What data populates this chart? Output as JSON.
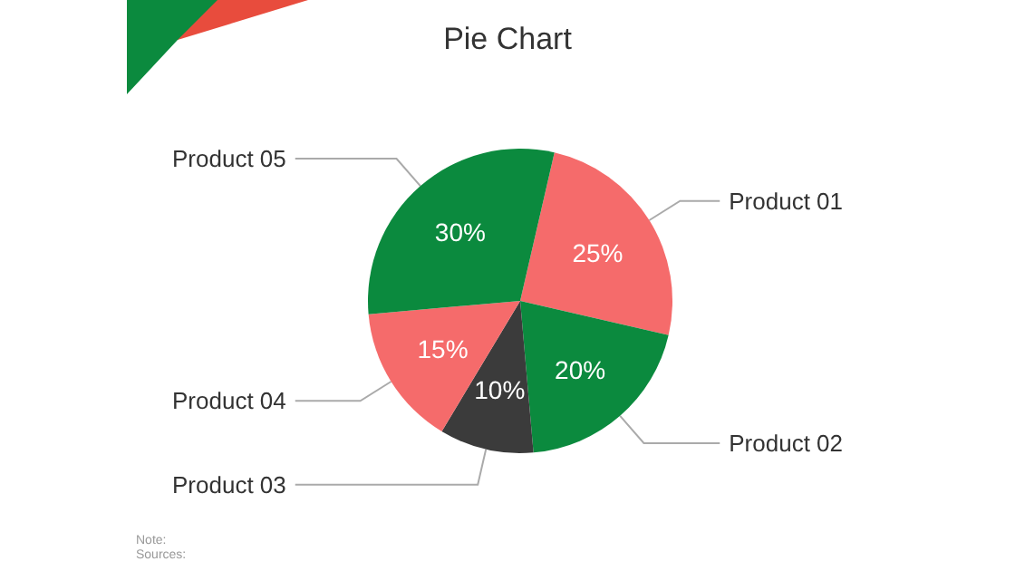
{
  "chart_data": {
    "type": "pie",
    "title": "Pie Chart",
    "categories": [
      "Product 01",
      "Product 02",
      "Product 03",
      "Product 04",
      "Product 05"
    ],
    "values": [
      25,
      20,
      10,
      15,
      30
    ],
    "value_labels": [
      "25%",
      "20%",
      "10%",
      "15%",
      "30%"
    ],
    "colors": [
      "#f56b6b",
      "#0b8a3e",
      "#3b3b3b",
      "#f56b6b",
      "#0b8a3e"
    ],
    "annotations": [
      "Note:",
      "Sources:"
    ],
    "legend": false
  }
}
